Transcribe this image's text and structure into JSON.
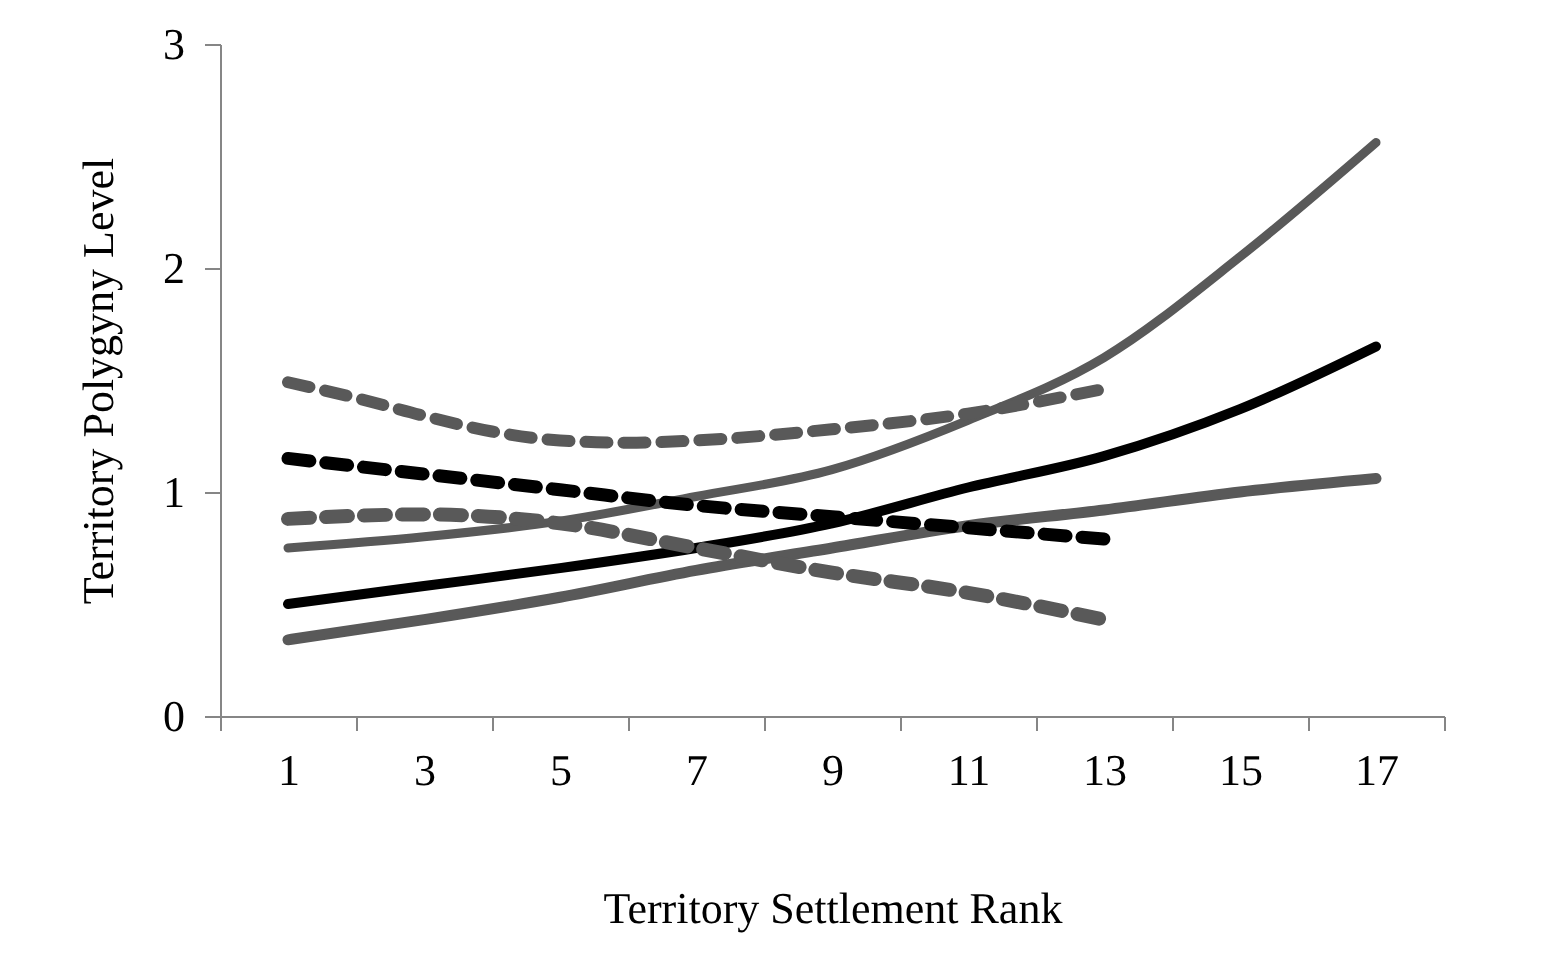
{
  "chart_data": {
    "type": "line",
    "xlabel": "Territory Settlement Rank",
    "ylabel": "Territory Polygyny Level",
    "xlim": [
      0,
      18
    ],
    "xticks": [
      {
        "value": 0,
        "label": null
      },
      1,
      {
        "value": 2,
        "label": null
      },
      3,
      {
        "value": 4,
        "label": null
      },
      5,
      {
        "value": 6,
        "label": null
      },
      7,
      {
        "value": 8,
        "label": null
      },
      9,
      {
        "value": 10,
        "label": null
      },
      11,
      {
        "value": 12,
        "label": null
      },
      13,
      {
        "value": 14,
        "label": null
      },
      15,
      {
        "value": 16,
        "label": null
      },
      17,
      {
        "value": 18,
        "label": null
      }
    ],
    "ylim": [
      0,
      3
    ],
    "yticks": [
      0,
      1,
      2,
      3
    ],
    "grid": false,
    "marker": "none",
    "series": [
      {
        "color": "#595959",
        "line_style": "solid",
        "x": [
          1,
          3,
          5,
          7,
          9,
          11,
          13,
          15,
          17
        ],
        "values": [
          0.75,
          0.8,
          0.87,
          0.98,
          1.1,
          1.32,
          1.6,
          2.05,
          2.56
        ]
      },
      {
        "color": "#000000",
        "line_style": "solid",
        "x": [
          1,
          3,
          5,
          7,
          9,
          11,
          13,
          15,
          17
        ],
        "values": [
          0.5,
          0.58,
          0.66,
          0.75,
          0.86,
          1.02,
          1.16,
          1.37,
          1.65
        ]
      },
      {
        "color": "#595959",
        "line_style": "solid",
        "x": [
          1,
          3,
          5,
          7,
          9,
          11,
          13,
          15,
          17
        ],
        "values": [
          0.34,
          0.43,
          0.53,
          0.65,
          0.75,
          0.85,
          0.92,
          1.0,
          1.06
        ]
      },
      {
        "color": "#595959",
        "line_style": "dashed",
        "x": [
          1,
          2,
          3,
          4,
          5,
          6,
          7,
          9,
          11,
          13
        ],
        "values": [
          1.49,
          1.42,
          1.34,
          1.27,
          1.23,
          1.22,
          1.23,
          1.28,
          1.35,
          1.46
        ]
      },
      {
        "color": "#000000",
        "line_style": "dashed",
        "x": [
          1,
          3,
          5,
          7,
          9,
          11,
          13
        ],
        "values": [
          1.15,
          1.08,
          1.01,
          0.94,
          0.89,
          0.84,
          0.79
        ]
      },
      {
        "color": "#595959",
        "line_style": "dashed",
        "x": [
          1,
          3,
          5,
          7,
          9,
          11,
          13
        ],
        "values": [
          0.88,
          0.9,
          0.86,
          0.75,
          0.64,
          0.55,
          0.43
        ]
      }
    ]
  }
}
